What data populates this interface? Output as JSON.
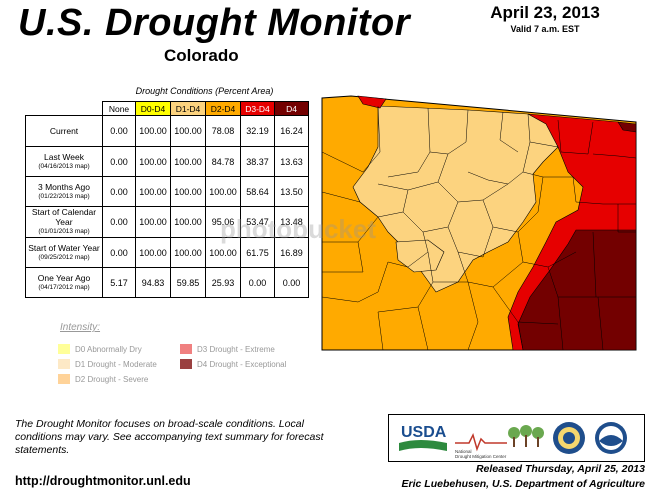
{
  "header": {
    "title": "U.S. Drought Monitor",
    "state": "Colorado",
    "date": "April 23, 2013",
    "valid": "Valid 7 a.m. EST"
  },
  "table": {
    "title": "Drought Conditions (Percent Area)",
    "columns": [
      "None",
      "D0-D4",
      "D1-D4",
      "D2-D4",
      "D3-D4",
      "D4"
    ],
    "rows": [
      {
        "label": "Current",
        "sub": "",
        "values": [
          "0.00",
          "100.00",
          "100.00",
          "78.08",
          "32.19",
          "16.24"
        ]
      },
      {
        "label": "Last Week",
        "sub": "(04/16/2013 map)",
        "values": [
          "0.00",
          "100.00",
          "100.00",
          "84.78",
          "38.37",
          "13.63"
        ]
      },
      {
        "label": "3 Months Ago",
        "sub": "(01/22/2013 map)",
        "values": [
          "0.00",
          "100.00",
          "100.00",
          "100.00",
          "58.64",
          "13.50"
        ]
      },
      {
        "label": "Start of Calendar Year",
        "sub": "(01/01/2013 map)",
        "values": [
          "0.00",
          "100.00",
          "100.00",
          "95.06",
          "53.47",
          "13.48"
        ]
      },
      {
        "label": "Start of Water Year",
        "sub": "(09/25/2012 map)",
        "values": [
          "0.00",
          "100.00",
          "100.00",
          "100.00",
          "61.75",
          "16.89"
        ]
      },
      {
        "label": "One Year Ago",
        "sub": "(04/17/2012 map)",
        "values": [
          "5.17",
          "94.83",
          "59.85",
          "25.93",
          "0.00",
          "0.00"
        ]
      }
    ]
  },
  "legend": {
    "title": "Intensity:",
    "items": [
      {
        "label": "D0 Abnormally Dry",
        "color": "#ffff00"
      },
      {
        "label": "D1 Drought - Moderate",
        "color": "#fcd37f"
      },
      {
        "label": "D2 Drought - Severe",
        "color": "#ffaa00"
      },
      {
        "label": "D3 Drought - Extreme",
        "color": "#e60000"
      },
      {
        "label": "D4 Drought - Exceptional",
        "color": "#730000"
      }
    ]
  },
  "footnote": "The Drought Monitor focuses on broad-scale conditions. Local conditions may vary. See accompanying text summary for forecast statements.",
  "url": "http://droughtmonitor.unl.edu",
  "released": "Released Thursday, April 25, 2013",
  "author": "Eric Luebehusen, U.S. Department of Agriculture",
  "logos": {
    "usda": "USDA",
    "ndmc_line1": "National",
    "ndmc_line2": "Drought Mitigation Center"
  },
  "watermark": "photobucket"
}
